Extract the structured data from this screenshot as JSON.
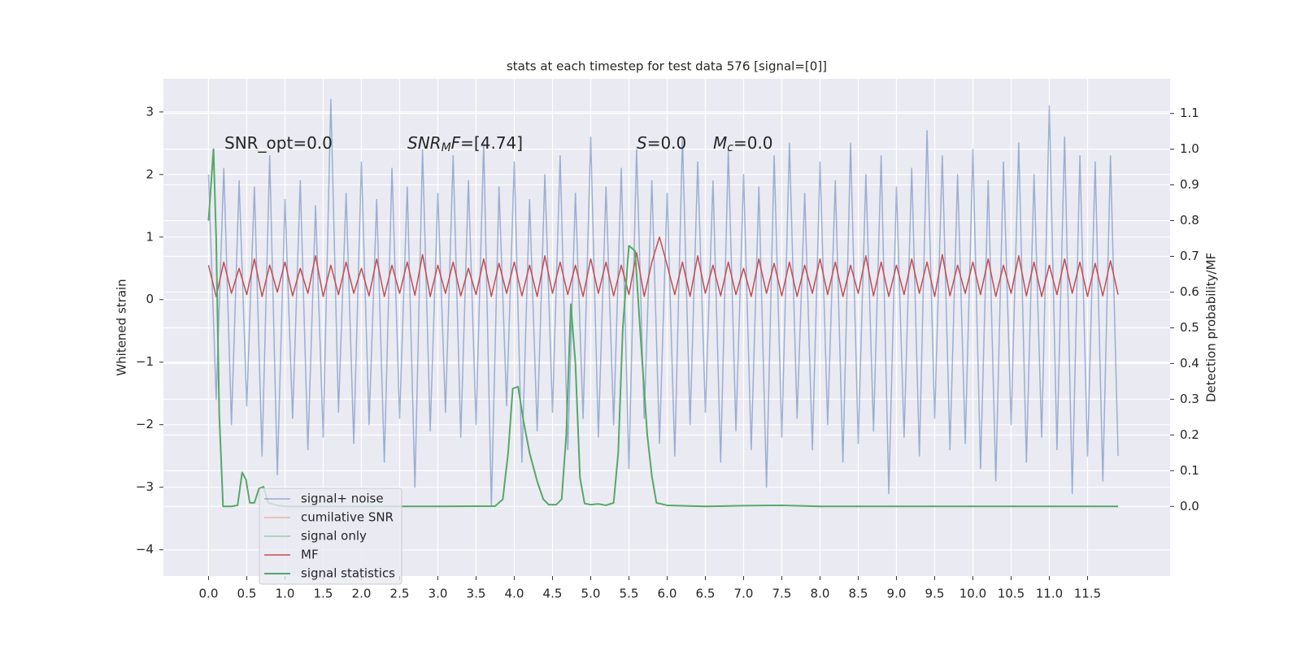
{
  "chart_data": {
    "type": "line",
    "title": "stats at each timestep for test data 576 [signal=[0]]",
    "ylabel": "Whitened strain",
    "y2label": "Detection probability/MF",
    "grid": true,
    "legend": "lower left",
    "annotations": [
      {
        "parts": [
          {
            "text": "SNR_opt=0.0"
          }
        ]
      },
      {
        "parts": [
          {
            "text": "SNR",
            "italic": true
          },
          {
            "text": "M",
            "italic": true,
            "sub": true
          },
          {
            "text": "F",
            "italic": true
          },
          {
            "text": "=[4.74]"
          }
        ]
      },
      {
        "parts": [
          {
            "text": "S",
            "italic": true
          },
          {
            "text": "=0.0"
          }
        ]
      },
      {
        "parts": [
          {
            "text": "M",
            "italic": true
          },
          {
            "text": "c",
            "italic": true,
            "sub": true
          },
          {
            "text": "=0.0"
          }
        ]
      }
    ],
    "xlim": [
      -0.59,
      12.58
    ],
    "ylim": [
      -4.42,
      3.53
    ],
    "y2lim": [
      -0.195,
      1.197
    ],
    "xticks": [
      {
        "value": 0,
        "label": "0.0"
      },
      0.5,
      {
        "value": 1,
        "label": "1.0"
      },
      1.5,
      {
        "value": 2,
        "label": "2.0"
      },
      2.5,
      {
        "value": 3,
        "label": "3.0"
      },
      3.5,
      {
        "value": 4,
        "label": "4.0"
      },
      4.5,
      {
        "value": 5,
        "label": "5.0"
      },
      5.5,
      {
        "value": 6,
        "label": "6.0"
      },
      6.5,
      {
        "value": 7,
        "label": "7.0"
      },
      7.5,
      {
        "value": 8,
        "label": "8.0"
      },
      8.5,
      {
        "value": 9,
        "label": "9.0"
      },
      9.5,
      {
        "value": 10,
        "label": "10.0"
      },
      10.5,
      {
        "value": 11,
        "label": "11.0"
      },
      11.5
    ],
    "yticks": [
      {
        "value": -4,
        "label": "−4"
      },
      {
        "value": -3,
        "label": "−3"
      },
      {
        "value": -2,
        "label": "−2"
      },
      {
        "value": -1,
        "label": "−1"
      },
      0,
      1,
      2,
      3
    ],
    "y2ticks": [
      {
        "value": 0,
        "label": "0.0"
      },
      0.1,
      0.2,
      0.3,
      0.4,
      0.5,
      0.6,
      0.7,
      0.8,
      0.9,
      {
        "value": 1,
        "label": "1.0"
      },
      1.1
    ],
    "x": [
      0.0,
      0.1,
      0.2,
      0.3,
      0.4,
      0.5,
      0.6,
      0.7,
      0.8,
      0.9,
      1.0,
      1.1,
      1.2,
      1.3,
      1.4,
      1.5,
      1.6,
      1.7,
      1.8,
      1.9,
      2.0,
      2.1,
      2.2,
      2.3,
      2.4,
      2.5,
      2.6,
      2.7,
      2.8,
      2.9,
      3.0,
      3.1,
      3.2,
      3.3,
      3.4,
      3.5,
      3.6,
      3.7,
      3.8,
      3.9,
      4.0,
      4.1,
      4.2,
      4.3,
      4.4,
      4.5,
      4.6,
      4.7,
      4.8,
      4.9,
      5.0,
      5.1,
      5.2,
      5.3,
      5.4,
      5.5,
      5.6,
      5.7,
      5.8,
      5.9,
      6.0,
      6.1,
      6.2,
      6.3,
      6.4,
      6.5,
      6.6,
      6.7,
      6.8,
      6.9,
      7.0,
      7.1,
      7.2,
      7.3,
      7.4,
      7.5,
      7.6,
      7.7,
      7.8,
      7.9,
      8.0,
      8.1,
      8.2,
      8.3,
      8.4,
      8.5,
      8.6,
      8.7,
      8.8,
      8.9,
      9.0,
      9.1,
      9.2,
      9.3,
      9.4,
      9.5,
      9.6,
      9.7,
      9.8,
      9.9,
      10.0,
      10.1,
      10.2,
      10.3,
      10.4,
      10.5,
      10.6,
      10.7,
      10.8,
      10.9,
      11.0,
      11.1,
      11.2,
      11.3,
      11.4,
      11.5,
      11.6,
      11.7,
      11.8,
      11.9
    ],
    "series": [
      {
        "name": "signal+ noise",
        "color": "#4c72b0",
        "values": [
          2.0,
          -1.6,
          2.1,
          -2.0,
          1.9,
          -1.7,
          1.8,
          -2.5,
          2.3,
          -2.8,
          1.6,
          -1.9,
          1.9,
          -2.4,
          1.5,
          -2.2,
          3.2,
          -1.8,
          1.7,
          -2.3,
          2.2,
          -2.0,
          1.6,
          -2.6,
          2.1,
          -1.9,
          1.8,
          -3.0,
          2.4,
          -2.1,
          1.7,
          -1.8,
          2.3,
          -2.2,
          1.9,
          -2.0,
          2.5,
          -3.3,
          1.8,
          -1.7,
          2.2,
          -2.6,
          1.6,
          -2.1,
          2.0,
          -1.8,
          2.3,
          -2.4,
          1.7,
          -1.9,
          2.6,
          -2.2,
          1.8,
          -2.0,
          2.1,
          -2.7,
          2.4,
          -1.9,
          1.9,
          -2.3,
          1.7,
          -2.5,
          2.6,
          -2.0,
          2.2,
          -1.8,
          1.9,
          -2.6,
          2.4,
          -2.1,
          2.0,
          -2.4,
          1.8,
          -3.0,
          2.3,
          -2.2,
          2.5,
          -1.9,
          1.7,
          -2.4,
          2.2,
          -2.0,
          1.9,
          -2.6,
          2.5,
          -2.3,
          2.0,
          -2.1,
          2.3,
          -3.1,
          1.8,
          -2.2,
          2.1,
          -2.5,
          2.7,
          -1.9,
          2.3,
          -2.4,
          2.0,
          -2.3,
          2.4,
          -2.7,
          1.9,
          -2.9,
          2.2,
          -2.0,
          2.5,
          -2.6,
          2.0,
          -2.2,
          3.1,
          -2.4,
          2.6,
          -3.1,
          2.3,
          -2.5,
          2.2,
          -2.9,
          2.3,
          -2.5
        ]
      },
      {
        "name": "cumilative SNR",
        "color": "#dd8452",
        "values": null
      },
      {
        "name": "signal only",
        "color": "#55a868",
        "values": null
      },
      {
        "name": "MF",
        "color": "#c44e52",
        "values": [
          0.55,
          0.05,
          0.6,
          0.1,
          0.5,
          0.08,
          0.65,
          0.05,
          0.55,
          0.12,
          0.6,
          0.06,
          0.5,
          0.1,
          0.7,
          0.05,
          0.55,
          0.08,
          0.6,
          0.1,
          0.5,
          0.06,
          0.65,
          0.05,
          0.55,
          0.1,
          0.6,
          0.07,
          0.72,
          0.05,
          0.55,
          0.1,
          0.6,
          0.06,
          0.5,
          0.08,
          0.65,
          0.05,
          0.58,
          0.1,
          0.6,
          0.06,
          0.55,
          0.05,
          0.7,
          0.1,
          0.6,
          0.08,
          0.55,
          0.05,
          0.65,
          0.1,
          0.6,
          0.06,
          0.55,
          0.08,
          0.75,
          0.05,
          0.6,
          1.0,
          0.55,
          0.08,
          0.6,
          0.05,
          0.7,
          0.1,
          0.55,
          0.06,
          0.6,
          0.08,
          0.5,
          0.05,
          0.65,
          0.1,
          0.58,
          0.06,
          0.6,
          0.05,
          0.55,
          0.1,
          0.65,
          0.08,
          0.6,
          0.05,
          0.55,
          0.1,
          0.7,
          0.06,
          0.6,
          0.05,
          0.55,
          0.08,
          0.65,
          0.1,
          0.6,
          0.05,
          0.72,
          0.06,
          0.55,
          0.1,
          0.6,
          0.08,
          0.65,
          0.05,
          0.55,
          0.1,
          0.7,
          0.06,
          0.6,
          0.05,
          0.55,
          0.08,
          0.65,
          0.1,
          0.6,
          0.05,
          0.58,
          0.06,
          0.62,
          0.08
        ]
      },
      {
        "name": "signal statistics",
        "color": "#55a868",
        "axis": "y2",
        "x": [
          0.0,
          0.065,
          0.1,
          0.14,
          0.19,
          0.3,
          0.38,
          0.44,
          0.49,
          0.54,
          0.6,
          0.66,
          0.72,
          0.78,
          0.9,
          1.0,
          2.0,
          3.0,
          3.75,
          3.85,
          3.92,
          3.98,
          4.05,
          4.12,
          4.2,
          4.3,
          4.38,
          4.45,
          4.55,
          4.62,
          4.68,
          4.74,
          4.8,
          4.86,
          4.92,
          5.0,
          5.1,
          5.2,
          5.3,
          5.36,
          5.42,
          5.5,
          5.58,
          5.66,
          5.74,
          5.8,
          5.86,
          6.0,
          6.5,
          7.0,
          7.5,
          8.0,
          9.0,
          10.0,
          11.0,
          11.9
        ],
        "values": [
          0.8,
          1.0,
          0.75,
          0.26,
          0.0,
          0.0,
          0.003,
          0.095,
          0.075,
          0.01,
          0.01,
          0.05,
          0.055,
          0.01,
          0.003,
          0.0,
          0.0,
          0.0,
          0.001,
          0.02,
          0.15,
          0.33,
          0.335,
          0.24,
          0.15,
          0.07,
          0.02,
          0.005,
          0.005,
          0.02,
          0.2,
          0.566,
          0.4,
          0.08,
          0.008,
          0.005,
          0.007,
          0.003,
          0.01,
          0.15,
          0.5,
          0.73,
          0.715,
          0.45,
          0.2,
          0.085,
          0.01,
          0.003,
          0.0,
          0.002,
          0.003,
          0.0,
          0.0,
          0.0,
          0.0,
          0.0
        ]
      }
    ]
  }
}
